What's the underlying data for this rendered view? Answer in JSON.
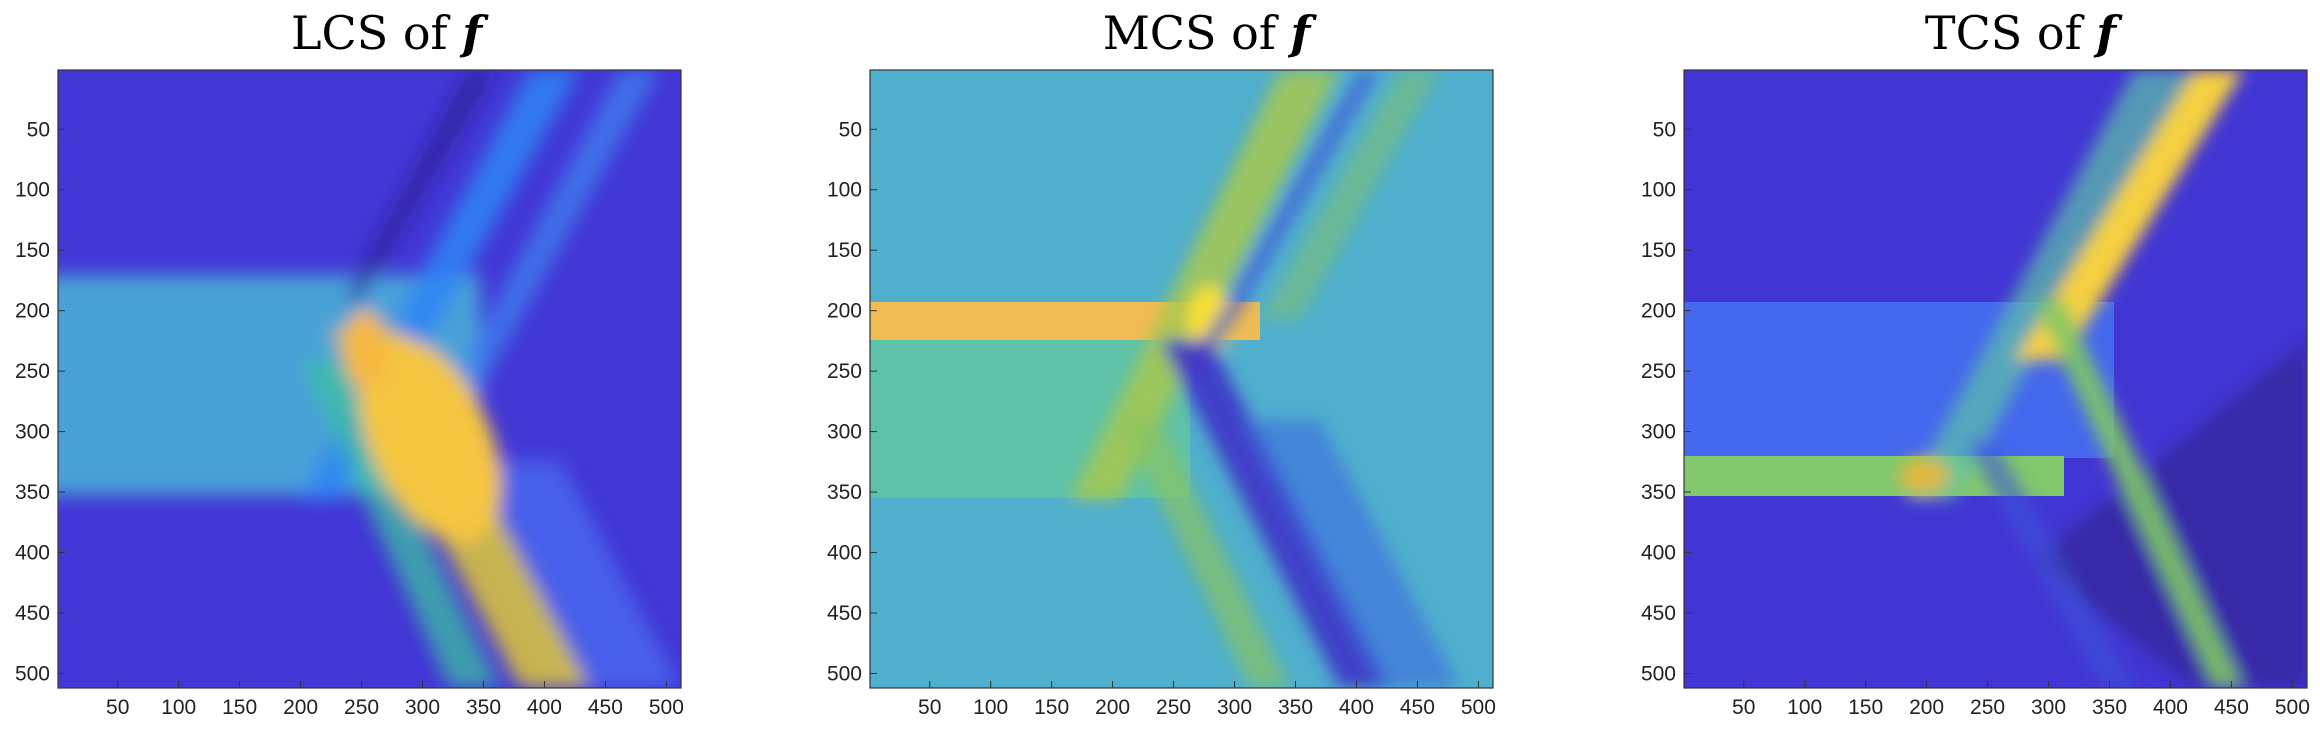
{
  "chart_data": [
    {
      "type": "heatmap",
      "title": "LCS of ",
      "title_symbol": "f",
      "xlim": [
        1,
        512
      ],
      "ylim": [
        1,
        512
      ],
      "y_reversed": true,
      "xticks": [
        50,
        100,
        150,
        200,
        250,
        300,
        350,
        400,
        450,
        500
      ],
      "yticks": [
        50,
        100,
        150,
        200,
        250,
        300,
        350,
        400,
        450,
        500
      ],
      "colormap": [
        "#3e26a8",
        "#4354e8",
        "#2e85f5",
        "#1cadd8",
        "#3fbfa2",
        "#88c45f",
        "#e0b83e",
        "#fcd336",
        "#f9fb15"
      ],
      "background": "#4238d6",
      "features": [
        {
          "shape": "band",
          "y": [
            185,
            353
          ],
          "x": [
            1,
            330
          ],
          "value": "#4aa8d8"
        },
        {
          "shape": "diag",
          "x": [
            190,
            420
          ],
          "y": [
            230,
            512
          ],
          "value": "#d6c040"
        },
        {
          "shape": "diag",
          "x": [
            230,
            390
          ],
          "y": [
            1,
            512
          ],
          "value": "#3f86f0"
        },
        {
          "shape": "diag",
          "x": [
            300,
            500
          ],
          "y": [
            1,
            512
          ],
          "value": "#4a6cf0"
        },
        {
          "shape": "blob",
          "x": 280,
          "y": 290,
          "value": "#f5c640"
        }
      ]
    },
    {
      "type": "heatmap",
      "title": "MCS of ",
      "title_symbol": "f",
      "xlim": [
        1,
        512
      ],
      "ylim": [
        1,
        512
      ],
      "y_reversed": true,
      "xticks": [
        50,
        100,
        150,
        200,
        250,
        300,
        350,
        400,
        450,
        500
      ],
      "yticks": [
        50,
        100,
        150,
        200,
        250,
        300,
        350,
        400,
        450,
        500
      ],
      "colormap": [
        "#3e26a8",
        "#4354e8",
        "#2e85f5",
        "#1cadd8",
        "#3fbfa2",
        "#88c45f",
        "#e0b83e",
        "#fcd336",
        "#f9fb15"
      ],
      "background": "#4fafcd",
      "features": [
        {
          "shape": "band",
          "y": [
            192,
            225
          ],
          "x": [
            1,
            350
          ],
          "value": "#efbc52"
        },
        {
          "shape": "band",
          "y": [
            225,
            353
          ],
          "x": [
            1,
            260
          ],
          "value": "#5ec2a8"
        },
        {
          "shape": "diag",
          "x": [
            200,
            390
          ],
          "y": [
            1,
            353
          ],
          "value": "#a6c850"
        },
        {
          "shape": "diag",
          "x": [
            270,
            450
          ],
          "y": [
            225,
            512
          ],
          "value": "#3e34c8"
        },
        {
          "shape": "diag",
          "x": [
            300,
            500
          ],
          "y": [
            1,
            512
          ],
          "value": "#3c6ae0"
        }
      ]
    },
    {
      "type": "heatmap",
      "title": "TCS of ",
      "title_symbol": "f",
      "xlim": [
        1,
        512
      ],
      "ylim": [
        1,
        512
      ],
      "y_reversed": true,
      "xticks": [
        50,
        100,
        150,
        200,
        250,
        300,
        350,
        400,
        450,
        500
      ],
      "yticks": [
        50,
        100,
        150,
        200,
        250,
        300,
        350,
        400,
        450,
        500
      ],
      "colormap": [
        "#3e26a8",
        "#4354e8",
        "#2e85f5",
        "#1cadd8",
        "#3fbfa2",
        "#88c45f",
        "#e0b83e",
        "#fcd336",
        "#f9fb15"
      ],
      "background": "#4136d4",
      "features": [
        {
          "shape": "band",
          "y": [
            192,
            320
          ],
          "x": [
            1,
            320
          ],
          "value": "#4468ee"
        },
        {
          "shape": "band",
          "y": [
            320,
            353
          ],
          "x": [
            1,
            320
          ],
          "value": "#82c86c"
        },
        {
          "shape": "diag",
          "x": [
            180,
            390
          ],
          "y": [
            1,
            353
          ],
          "value": "#f5d040"
        },
        {
          "shape": "diag",
          "x": [
            260,
            450
          ],
          "y": [
            192,
            512
          ],
          "value": "#7ec664"
        },
        {
          "shape": "diag",
          "x": [
            340,
            512
          ],
          "y": [
            260,
            512
          ],
          "value": "#36289e"
        }
      ]
    }
  ]
}
